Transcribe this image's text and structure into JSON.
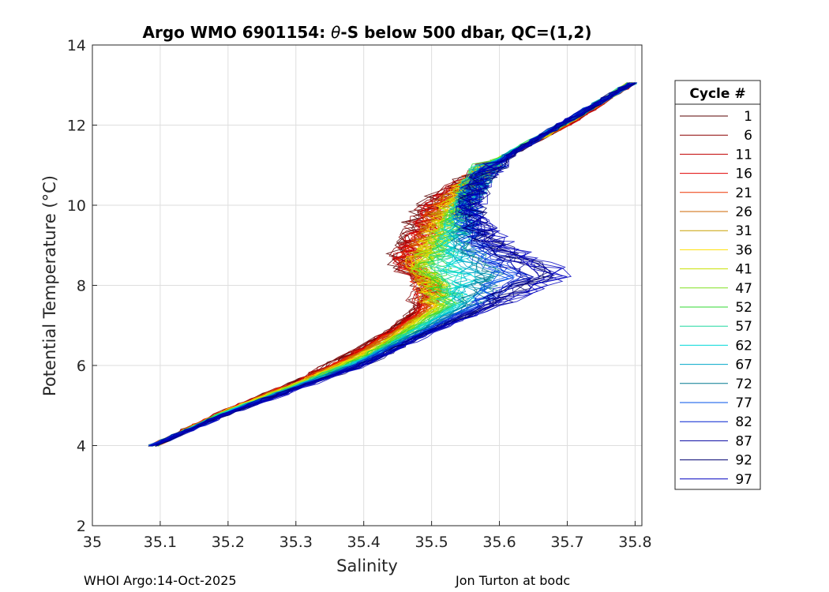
{
  "chart_data": {
    "type": "line",
    "title_prefix": "Argo WMO 6901154: ",
    "title_theta": "θ",
    "title_suffix": "-S below 500 dbar,  QC=(1,2)",
    "xlabel": "Salinity",
    "ylabel": "Potential Temperature (°C)",
    "xlim": [
      35.0,
      35.81
    ],
    "ylim": [
      2,
      14
    ],
    "xticks": [
      "35",
      "35.1",
      "35.2",
      "35.3",
      "35.4",
      "35.5",
      "35.6",
      "35.7",
      "35.8"
    ],
    "yticks": [
      "2",
      "4",
      "6",
      "8",
      "10",
      "12",
      "14"
    ],
    "grid": true,
    "legend": {
      "title": "Cycle #",
      "position": "right-outside",
      "entries": [
        {
          "label": "1",
          "color": "#5a0000"
        },
        {
          "label": "6",
          "color": "#8c0000"
        },
        {
          "label": "11",
          "color": "#c00000"
        },
        {
          "label": "16",
          "color": "#e00000"
        },
        {
          "label": "21",
          "color": "#ee3300"
        },
        {
          "label": "26",
          "color": "#cc6600"
        },
        {
          "label": "31",
          "color": "#c8a000"
        },
        {
          "label": "36",
          "color": "#ffe000"
        },
        {
          "label": "41",
          "color": "#c8e000"
        },
        {
          "label": "47",
          "color": "#80e020"
        },
        {
          "label": "52",
          "color": "#30d830"
        },
        {
          "label": "57",
          "color": "#20d8a0"
        },
        {
          "label": "62",
          "color": "#00d8d8"
        },
        {
          "label": "67",
          "color": "#00a8c8"
        },
        {
          "label": "72",
          "color": "#007890"
        },
        {
          "label": "77",
          "color": "#0050e8"
        },
        {
          "label": "82",
          "color": "#0020d0"
        },
        {
          "label": "87",
          "color": "#0000a0"
        },
        {
          "label": "92",
          "color": "#000070"
        },
        {
          "label": "97",
          "color": "#0000c0"
        }
      ]
    },
    "envelope_profiles": {
      "red": [
        [
          35.09,
          4.0
        ],
        [
          35.2,
          4.9
        ],
        [
          35.3,
          5.6
        ],
        [
          35.4,
          6.5
        ],
        [
          35.47,
          7.3
        ],
        [
          35.49,
          8.0
        ],
        [
          35.45,
          8.6
        ],
        [
          35.47,
          9.3
        ],
        [
          35.49,
          10.0
        ],
        [
          35.55,
          10.6
        ],
        [
          35.62,
          11.3
        ],
        [
          35.7,
          12.0
        ],
        [
          35.8,
          13.1
        ]
      ],
      "green": [
        [
          35.09,
          4.0
        ],
        [
          35.2,
          4.85
        ],
        [
          35.3,
          5.5
        ],
        [
          35.4,
          6.2
        ],
        [
          35.47,
          6.9
        ],
        [
          35.52,
          7.5
        ],
        [
          35.49,
          8.5
        ],
        [
          35.52,
          9.3
        ],
        [
          35.55,
          10.2
        ],
        [
          35.58,
          11.0
        ],
        [
          35.66,
          11.7
        ],
        [
          35.72,
          12.3
        ],
        [
          35.8,
          13.1
        ]
      ],
      "blue": [
        [
          35.09,
          4.0
        ],
        [
          35.2,
          4.8
        ],
        [
          35.3,
          5.4
        ],
        [
          35.4,
          6.0
        ],
        [
          35.5,
          6.8
        ],
        [
          35.6,
          7.5
        ],
        [
          35.7,
          8.3
        ],
        [
          35.64,
          8.7
        ],
        [
          35.59,
          9.2
        ],
        [
          35.56,
          9.9
        ],
        [
          35.57,
          10.6
        ],
        [
          35.63,
          11.4
        ],
        [
          35.72,
          12.3
        ],
        [
          35.8,
          13.1
        ]
      ]
    }
  },
  "footer": {
    "left": "WHOI Argo:14-Oct-2025",
    "right": "Jon Turton at bodc"
  }
}
